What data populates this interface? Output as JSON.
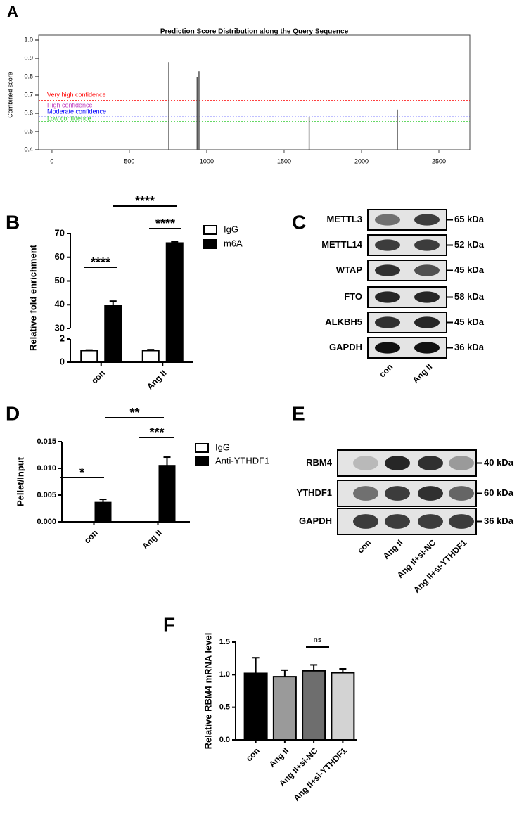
{
  "panel_labels": [
    "A",
    "B",
    "C",
    "D",
    "E",
    "F"
  ],
  "chart_data": [
    {
      "type": "spike",
      "title": "Prediction Score Distribution along the Query Sequence",
      "y_label": "Combined score",
      "x": [
        755,
        938,
        950,
        1662,
        2232
      ],
      "values": [
        0.88,
        0.8,
        0.83,
        0.58,
        0.62
      ],
      "color": "#555555",
      "xlim": [
        -86,
        2700
      ],
      "xticks": [
        0,
        500,
        1000,
        1500,
        2000,
        2500
      ],
      "ylim": [
        0.4,
        1.0
      ],
      "yticks": [
        0.4,
        0.5,
        0.6,
        0.7,
        0.8,
        0.9,
        {
          "value": 1.0,
          "label": "1.0"
        }
      ],
      "thresholds": [
        {
          "name": "Very high confidence",
          "value": 0.67,
          "color": "#ff0000",
          "line": true
        },
        {
          "name": "High confidence",
          "value": 0.63,
          "color": "#c040c0",
          "line": false
        },
        {
          "name": "Moderate confidence",
          "value": 0.58,
          "color": "#0000ff",
          "line": true
        },
        {
          "name": "Low confidence",
          "value": 0.555,
          "color": "#33cc33",
          "line": true
        }
      ]
    },
    {
      "type": "bar",
      "y_label": "Relative fold enrichment",
      "categories": [
        "con",
        "Ang II"
      ],
      "series": [
        {
          "name": "IgG",
          "color": "#ffffff",
          "values": [
            1,
            1
          ],
          "errors": [
            0.05,
            0.08
          ]
        },
        {
          "name": "m6A",
          "color": "#000000",
          "values": [
            39.5,
            66
          ],
          "errors": [
            2,
            0.6
          ]
        }
      ],
      "ylim": [
        0,
        70
      ],
      "ybreak": [
        2,
        30
      ],
      "yticks": [
        0,
        2,
        30,
        40,
        50,
        60,
        70
      ],
      "annotations": [
        "****",
        "****",
        "****"
      ]
    },
    {
      "type": "bar",
      "y_label": "Pellet/Input",
      "categories": [
        "con",
        "Ang II"
      ],
      "series": [
        {
          "name": "IgG",
          "color": "#ffffff",
          "values": [
            0,
            0
          ],
          "errors": [
            0,
            0
          ]
        },
        {
          "name": "Anti-YTHDF1",
          "color": "#000000",
          "values": [
            0.0036,
            0.0105
          ],
          "errors": [
            0.0006,
            0.0016
          ]
        }
      ],
      "ylim": [
        0,
        0.015
      ],
      "yticks": [
        {
          "value": 0,
          "label": "0.000"
        },
        {
          "value": 0.005,
          "label": "0.005"
        },
        {
          "value": 0.01,
          "label": "0.010"
        },
        {
          "value": 0.015,
          "label": "0.015"
        }
      ],
      "annotations": [
        "*",
        "***",
        "**"
      ]
    },
    {
      "type": "bar",
      "y_label": "Relative RBM4 mRNA level",
      "categories": [
        "con",
        "Ang II",
        "Ang II+si-NC",
        "Ang II+si-YTHDF1"
      ],
      "values": [
        1.02,
        0.97,
        1.06,
        1.03
      ],
      "errors": [
        0.24,
        0.1,
        0.09,
        0.06
      ],
      "colors": [
        "#000000",
        "#9a9a9a",
        "#6e6e6e",
        "#d3d3d3"
      ],
      "ylim": [
        0,
        1.5
      ],
      "yticks": [
        {
          "value": 0,
          "label": "0.0"
        },
        {
          "value": 0.5,
          "label": "0.5"
        },
        {
          "value": 1.0,
          "label": "1.0"
        },
        {
          "value": 1.5,
          "label": "1.5"
        }
      ],
      "annotations": [
        "ns"
      ]
    }
  ],
  "blots": [
    {
      "lanes": [
        "con",
        "Ang II"
      ],
      "rows": [
        {
          "protein": "METTL3",
          "size": "65 kDa"
        },
        {
          "protein": "METTL14",
          "size": "52 kDa"
        },
        {
          "protein": "WTAP",
          "size": "45 kDa"
        },
        {
          "protein": "FTO",
          "size": "58 kDa"
        },
        {
          "protein": "ALKBH5",
          "size": "45 kDa"
        },
        {
          "protein": "GAPDH",
          "size": "36 kDa"
        }
      ]
    },
    {
      "lanes": [
        "con",
        "Ang II",
        "Ang II+si-NC",
        "Ang II+si-YTHDF1"
      ],
      "rows": [
        {
          "protein": "RBM4",
          "size": "40 kDa"
        },
        {
          "protein": "YTHDF1",
          "size": "60 kDa"
        },
        {
          "protein": "GAPDH",
          "size": "36 kDa"
        }
      ]
    }
  ]
}
